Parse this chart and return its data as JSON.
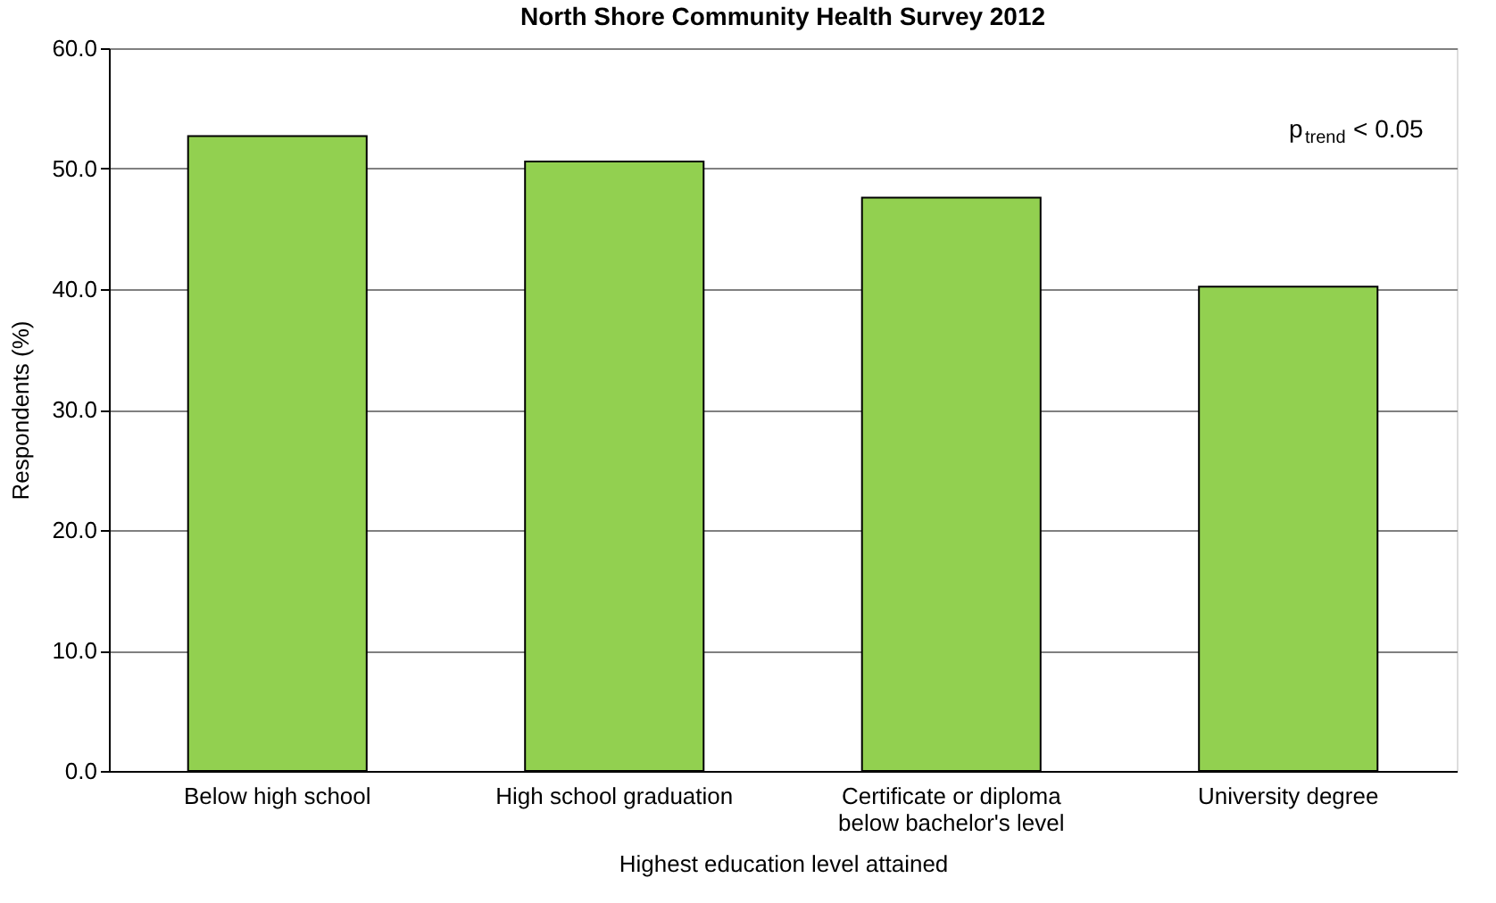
{
  "chart_data": {
    "type": "bar",
    "title": "North Shore Community Health Survey 2012",
    "xlabel": "Highest education level attained",
    "ylabel": "Respondents (%)",
    "categories": [
      "Below high school",
      "High school graduation",
      "Certificate or diploma\nbelow bachelor's level",
      "University degree"
    ],
    "values": [
      52.7,
      50.6,
      47.6,
      40.2
    ],
    "color": "#92d050",
    "ylim": [
      0,
      60
    ],
    "yticks": [
      {
        "value": 0,
        "label": "0.0"
      },
      {
        "value": 10,
        "label": "10.0"
      },
      {
        "value": 20,
        "label": "20.0"
      },
      {
        "value": 30,
        "label": "30.0"
      },
      {
        "value": 40,
        "label": "40.0"
      },
      {
        "value": 50,
        "label": "50.0"
      },
      {
        "value": 60,
        "label": "60.0"
      }
    ],
    "grid": "y",
    "annotations": [
      "p$_{trend}$< 0.05"
    ]
  }
}
